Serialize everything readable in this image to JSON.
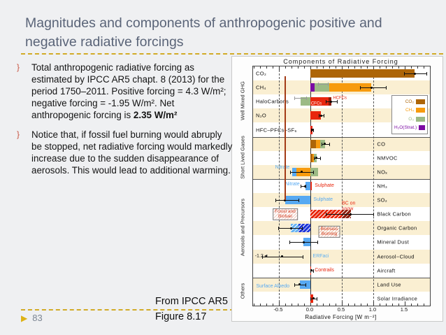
{
  "slide": {
    "title": "Magnitudes and components of anthropogenic positive and negative radiative forcings",
    "bullets": [
      {
        "marker": "}",
        "text_main": "Total anthropogenic radiative forcing as estimated by IPCC AR5 chapt. 8 (2013) for the period 1750–2011.  Positive forcing = 4.3 W/m²; negative forcing = -1.95  W/m². Net anthropogenic forcing is ",
        "text_bold": "2.35 W/m²"
      },
      {
        "marker": "}",
        "text_main": "Notice that, if fossil fuel burning would abruply be stopped, net radiative forcing would markedly increase due to the sudden disappearance of aerosols. This would lead to additional warming.",
        "text_bold": ""
      }
    ],
    "source_line1": "From IPCC AR5",
    "source_line2": "Figure 8.17",
    "page_marker": "▶",
    "page_number": "83"
  },
  "chart_data": {
    "type": "bar",
    "title": "Components of Radiative Forcing",
    "xlabel": "Radiative Forcing [W m⁻²]",
    "xlim": [
      -0.91,
      1.9
    ],
    "xticks": [
      -0.5,
      0.0,
      0.5,
      1.0,
      1.5
    ],
    "xtick_labels": [
      "-0.5",
      "0.0",
      "0.5",
      "1.0",
      "1.5"
    ],
    "dashed_gridlines": [
      -0.5,
      0.5,
      1.0
    ],
    "zero_line": 0.0,
    "annotation_red_line": {
      "x": -0.41,
      "color": "#a33b16"
    },
    "stripe_color": "#faefd2",
    "legend": [
      {
        "label": "CO₂",
        "color": "#ad6508"
      },
      {
        "label": "CH₄",
        "color": "#f79b0e"
      },
      {
        "label": "O₃",
        "color": "#9cba85"
      },
      {
        "label": "H₂O(Strat.)",
        "color": "#7c0ba3"
      }
    ],
    "groups": [
      {
        "label": "Well Mixed GHG",
        "from": 0,
        "to": 4
      },
      {
        "label": "Short Lived Gases",
        "from": 5,
        "to": 7
      },
      {
        "label": "Aerosols and Precursors",
        "from": 8,
        "to": 14
      },
      {
        "label": "Others",
        "from": 15,
        "to": 16
      }
    ],
    "separators_after_rows": [
      4,
      7,
      14
    ],
    "rows": [
      {
        "label": "CO₂",
        "side": "left",
        "segments": [
          {
            "from": 0,
            "to": 1.66,
            "color": "#ad6508"
          }
        ],
        "error": {
          "lo": 1.49,
          "hi": 1.84,
          "center": 1.66
        }
      },
      {
        "label": "CH₄",
        "side": "left",
        "segments": [
          {
            "from": 0,
            "to": 0.07,
            "color": "#7c0ba3"
          },
          {
            "from": 0.07,
            "to": 0.3,
            "color": "#9cba85"
          },
          {
            "from": 0.3,
            "to": 0.97,
            "color": "#f79b0e"
          }
        ],
        "error": {
          "lo": 0.79,
          "hi": 1.2,
          "center": 0.97
        },
        "error2": {
          "lo": 0.12,
          "hi": 0.28,
          "center": 0.2
        }
      },
      {
        "label": "HaloCarbons",
        "side": "left",
        "segments": [
          {
            "from": -0.16,
            "to": 0,
            "color": "#9cba85"
          },
          {
            "from": 0,
            "to": 0.29,
            "color": "#e8260d"
          },
          {
            "from": 0.29,
            "to": 0.33,
            "color": "#8c1a04"
          }
        ],
        "error": {
          "lo": 0.24,
          "hi": 0.42,
          "center": 0.33
        },
        "error2": {
          "lo": -0.25,
          "hi": -0.07,
          "center": -0.16
        },
        "notes": [
          {
            "text": "CFCs",
            "v": 0.01,
            "color": "#ffffff",
            "dy": 4,
            "fs": 6
          },
          {
            "text": "HCFCs",
            "v": 0.36,
            "color": "#e8260d",
            "dy": -4,
            "fs": 6
          }
        ]
      },
      {
        "label": "N₂O",
        "side": "left",
        "segments": [
          {
            "from": 0,
            "to": 0.17,
            "color": "#e8260d"
          }
        ],
        "error": {
          "lo": 0.13,
          "hi": 0.21,
          "center": 0.17
        }
      },
      {
        "label": "HFC–PFCs–SF₆",
        "side": "left",
        "segments": [
          {
            "from": 0,
            "to": 0.03,
            "color": "#e8260d"
          }
        ],
        "error": {
          "lo": 0.01,
          "hi": 0.05,
          "center": 0.03
        }
      },
      {
        "label": "CO",
        "side": "right",
        "segments": [
          {
            "from": 0,
            "to": 0.09,
            "color": "#ad6508"
          },
          {
            "from": 0.09,
            "to": 0.16,
            "color": "#f79b0e"
          },
          {
            "from": 0.16,
            "to": 0.23,
            "color": "#9cba85"
          }
        ],
        "error": {
          "lo": 0.18,
          "hi": 0.3,
          "center": 0.23
        }
      },
      {
        "label": "NMVOC",
        "side": "right",
        "segments": [
          {
            "from": 0,
            "to": 0.03,
            "color": "#ad6508"
          },
          {
            "from": 0.03,
            "to": 0.06,
            "color": "#f79b0e"
          },
          {
            "from": 0.06,
            "to": 0.1,
            "color": "#9cba85"
          }
        ],
        "error": {
          "lo": 0.06,
          "hi": 0.16,
          "center": 0.1
        }
      },
      {
        "label": "NOₓ",
        "side": "right",
        "segments": [
          {
            "from": -0.29,
            "to": -0.22,
            "color": "#57a9f2"
          },
          {
            "from": -0.22,
            "to": 0,
            "color": "#f79b0e"
          },
          {
            "from": 0,
            "to": 0.12,
            "color": "#9cba85"
          }
        ],
        "error": {
          "lo": -0.32,
          "hi": 0.05,
          "center": -0.14
        },
        "notes": [
          {
            "text": "Nitrate",
            "v": -0.33,
            "color": "#57a9f2",
            "dy": -6,
            "align": "right"
          }
        ]
      },
      {
        "label": "NH₃",
        "side": "right",
        "segments": [
          {
            "from": -0.08,
            "to": 0,
            "color": "#57a9f2"
          },
          {
            "from": 0,
            "to": 0.025,
            "color": "#e8260d"
          }
        ],
        "error": {
          "lo": -0.15,
          "hi": -0.08,
          "center": -0.08
        },
        "notes": [
          {
            "text": "Nitrate",
            "v": -0.17,
            "color": "#57a9f2",
            "dy": -2,
            "align": "right"
          },
          {
            "text": "Sulphate",
            "v": 0.07,
            "color": "#e8260d",
            "dy": 0
          }
        ]
      },
      {
        "label": "SO₂",
        "side": "right",
        "segments": [
          {
            "from": -0.4,
            "to": 0,
            "color": "#57a9f2"
          }
        ],
        "error": {
          "lo": -0.56,
          "hi": -0.19,
          "center": -0.4
        },
        "notes": [
          {
            "text": "Sulphate",
            "v": 0.05,
            "color": "#57a9f2",
            "dy": 0
          }
        ]
      },
      {
        "label": "Black Carbon",
        "side": "right",
        "segments": [
          {
            "from": 0,
            "to": 0.5,
            "color": "#e8260d",
            "hatch": "diag"
          },
          {
            "from": 0.5,
            "to": 0.64,
            "color": "#8c1a04",
            "hatch": "diag"
          }
        ],
        "error": {
          "lo": 0.24,
          "hi": 1.0,
          "center": 0.64
        },
        "notes": [
          {
            "text": "BC on\nsnow",
            "v": 0.5,
            "color": "#e8260d",
            "dy": -11
          },
          {
            "text": "Fossil and\nBiofuel",
            "v": -0.4,
            "color": "#d03a1e",
            "dy": 0,
            "boxed": true,
            "align": "center"
          }
        ]
      },
      {
        "label": "Organic Carbon",
        "side": "right",
        "segments": [
          {
            "from": -0.31,
            "to": -0.19,
            "color": "#66b2f2",
            "hatch": "diag"
          },
          {
            "from": -0.19,
            "to": 0,
            "color": "#2038d8",
            "hatch": "diag"
          }
        ],
        "error": {
          "lo": -0.51,
          "hi": -0.13,
          "center": -0.31
        },
        "notes": [
          {
            "text": "Biomass\nBurning",
            "v": 0.3,
            "color": "#d03a1e",
            "dy": 5,
            "boxed": true,
            "align": "center"
          }
        ]
      },
      {
        "label": "Mineral Dust",
        "side": "right",
        "segments": [
          {
            "from": -0.11,
            "to": 0,
            "color": "#57a9f2"
          }
        ],
        "error": {
          "lo": -0.33,
          "hi": 0.11,
          "center": -0.11
        }
      },
      {
        "label": "Aerosol−Cloud",
        "side": "right",
        "segments": [
          {
            "from": -0.45,
            "to": 0,
            "color": "#1f3fd0",
            "hatch": "cross"
          }
        ],
        "error": {
          "lo": -0.77,
          "hi": -0.12,
          "center": -0.45
        },
        "notes": [
          {
            "text": "-1.2◄",
            "v": -0.88,
            "color": "#222222",
            "dy": 0
          },
          {
            "text": "ERFaci",
            "v": 0.04,
            "color": "#5fb0f2",
            "dy": 0
          }
        ]
      },
      {
        "label": "Aircraft",
        "side": "right",
        "segments": [
          {
            "from": 0,
            "to": 0.012,
            "color": "#e8260d"
          }
        ],
        "error": {
          "lo": 0.005,
          "hi": 0.05,
          "center": 0.012
        },
        "notes": [
          {
            "text": "Contrails",
            "v": 0.07,
            "color": "#e8260d",
            "dy": 0
          }
        ]
      },
      {
        "label": "Land Use",
        "side": "right",
        "segments": [
          {
            "from": -0.17,
            "to": 0,
            "color": "#57a9f2"
          }
        ],
        "error": {
          "lo": -0.25,
          "hi": -0.08,
          "center": -0.17
        },
        "notes": [
          {
            "text": "Surface Albedo",
            "v": -0.86,
            "color": "#57a9f2",
            "dy": 3
          }
        ]
      },
      {
        "label": "Solar Irradiance",
        "side": "right",
        "segments": [
          {
            "from": 0,
            "to": 0.05,
            "color": "#e8260d"
          }
        ],
        "error": {
          "lo": 0.0,
          "hi": 0.1,
          "center": 0.05
        }
      }
    ]
  }
}
